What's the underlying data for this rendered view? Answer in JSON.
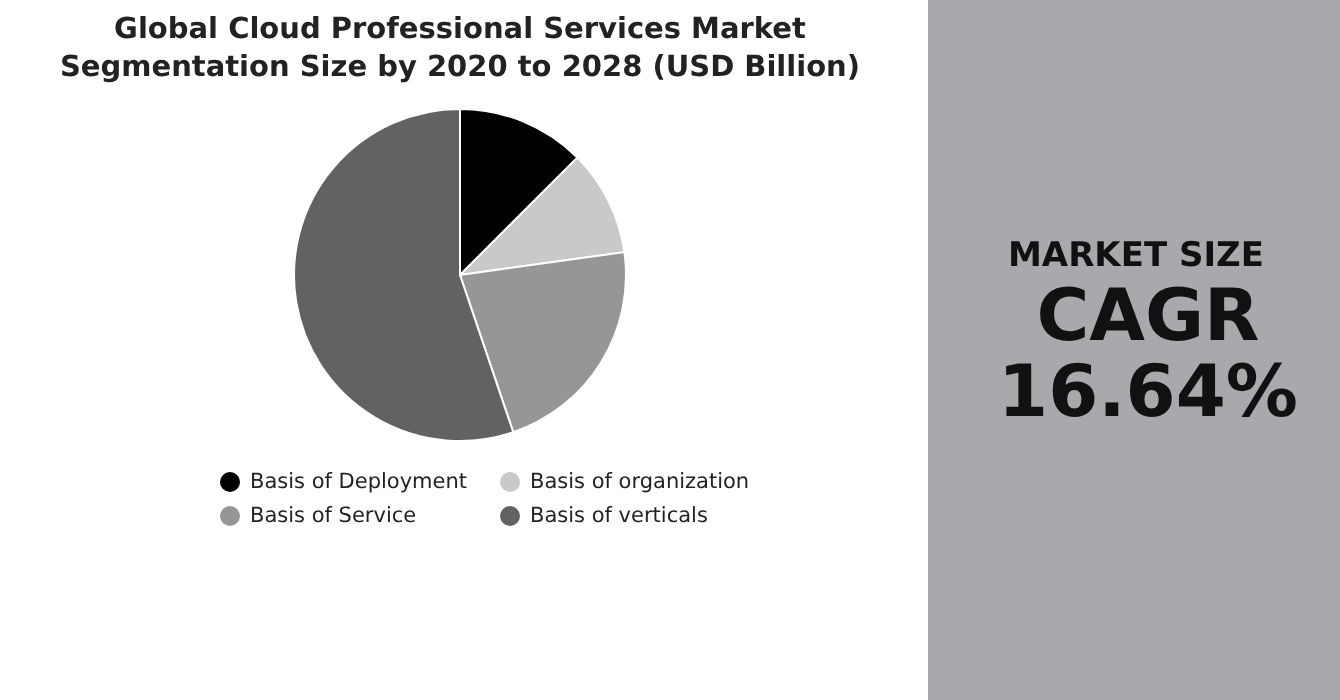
{
  "chart_data": {
    "type": "pie",
    "title": "Global Cloud Professional Services Market Segmentation Size by 2020 to 2028 (USD Billion)",
    "categories": [
      "Basis of Deployment",
      "Basis of organization",
      "Basis of Service",
      "Basis of verticals"
    ],
    "values": [
      12.5,
      10.3,
      22,
      55.2
    ],
    "colors": [
      "#000000",
      "#c9c9c9",
      "#969696",
      "#626262"
    ],
    "legend": "bottom",
    "annotations": [
      "MARKET SIZE",
      "CAGR 16.64%"
    ]
  }
}
